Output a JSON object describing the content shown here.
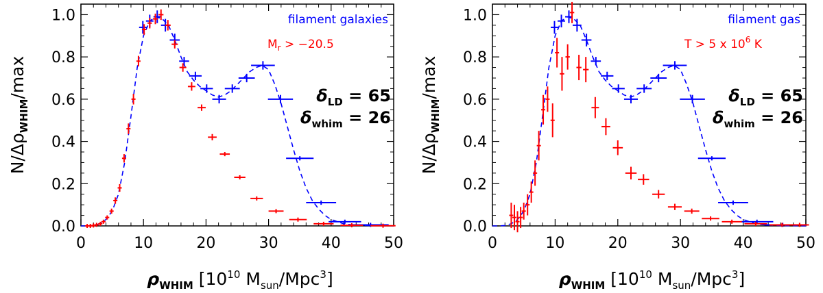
{
  "chart_data": [
    {
      "type": "line",
      "panel": "left",
      "xlim": [
        0,
        50
      ],
      "ylim": [
        0,
        1.05
      ],
      "xticks": [
        0,
        10,
        20,
        30,
        40,
        50
      ],
      "yticks": [
        0.0,
        0.2,
        0.4,
        0.6,
        0.8,
        1.0
      ],
      "xtick_labels": [
        "0",
        "10",
        "20",
        "30",
        "40",
        "50"
      ],
      "ytick_labels": [
        "0.0",
        "0.2",
        "0.4",
        "0.6",
        "0.8",
        "1.0"
      ],
      "xlabel": {
        "main": "ρ",
        "sub": "WHIM",
        "rest": " [10",
        "sup": "10",
        "rest2": " M",
        "sub2": "sun",
        "rest3": "/Mpc",
        "sup2": "3",
        "close": "]"
      },
      "ylabel": {
        "main": "N/Δρ",
        "sub": "WHIM",
        "rest": "/max"
      },
      "legend": [
        {
          "text": "filament galaxies",
          "color": "#0000ff",
          "position": "top-right"
        },
        {
          "text_main": "M",
          "text_sub": "r",
          "text_rest": " > −20.5",
          "color": "#ff0000",
          "position": "top-right"
        }
      ],
      "annotation": {
        "ld_label": "δ",
        "ld_sub": "LD",
        "ld_value": "=  65",
        "whim_label": "δ",
        "whim_sub": "whim",
        "whim_value": "=  26"
      },
      "series": [
        {
          "name": "filament galaxies (model)",
          "color": "#0000ff",
          "style": "dashed",
          "x": [
            0,
            1,
            2,
            3,
            4,
            5,
            6,
            7,
            8,
            9,
            10,
            11,
            12,
            13,
            14,
            15,
            16,
            17,
            18,
            19,
            20,
            21,
            22,
            23,
            24,
            25,
            26,
            27,
            28,
            29,
            30,
            31,
            32,
            33,
            34,
            35,
            36,
            37,
            38,
            39,
            40,
            41,
            42,
            43,
            44,
            45,
            46,
            47,
            48,
            49,
            50
          ],
          "y": [
            0,
            0,
            0.002,
            0.01,
            0.03,
            0.07,
            0.15,
            0.3,
            0.52,
            0.75,
            0.9,
            0.97,
            0.99,
            0.98,
            0.95,
            0.88,
            0.8,
            0.73,
            0.69,
            0.66,
            0.64,
            0.62,
            0.61,
            0.62,
            0.64,
            0.67,
            0.7,
            0.73,
            0.75,
            0.76,
            0.74,
            0.67,
            0.58,
            0.47,
            0.36,
            0.26,
            0.18,
            0.12,
            0.08,
            0.05,
            0.03,
            0.02,
            0.01,
            0.006,
            0.004,
            0.003,
            0.002,
            0.001,
            0.001,
            0.0005,
            0
          ]
        },
        {
          "name": "filament galaxies (binned)",
          "color": "#0000ff",
          "style": "crosses",
          "points": [
            {
              "x": 9.9,
              "y": 0.94,
              "dx": 0.6,
              "dy": 0.03
            },
            {
              "x": 11.0,
              "y": 0.97,
              "dx": 0.6,
              "dy": 0.03
            },
            {
              "x": 12.2,
              "y": 0.99,
              "dx": 0.6,
              "dy": 0.03
            },
            {
              "x": 13.5,
              "y": 0.95,
              "dx": 0.7,
              "dy": 0.03
            },
            {
              "x": 15.0,
              "y": 0.88,
              "dx": 0.8,
              "dy": 0.03
            },
            {
              "x": 16.5,
              "y": 0.78,
              "dx": 0.8,
              "dy": 0.02
            },
            {
              "x": 18.3,
              "y": 0.71,
              "dx": 1.0,
              "dy": 0.02
            },
            {
              "x": 20.1,
              "y": 0.65,
              "dx": 1.0,
              "dy": 0.02
            },
            {
              "x": 22.1,
              "y": 0.6,
              "dx": 1.1,
              "dy": 0.02
            },
            {
              "x": 24.2,
              "y": 0.65,
              "dx": 1.2,
              "dy": 0.02
            },
            {
              "x": 26.5,
              "y": 0.7,
              "dx": 1.3,
              "dy": 0.02
            },
            {
              "x": 29.1,
              "y": 0.76,
              "dx": 1.9,
              "dy": 0.02
            },
            {
              "x": 31.9,
              "y": 0.6,
              "dx": 2.0,
              "dy": 0.02
            },
            {
              "x": 35.0,
              "y": 0.32,
              "dx": 2.2,
              "dy": 0.01
            },
            {
              "x": 38.4,
              "y": 0.11,
              "dx": 2.4,
              "dy": 0.01
            },
            {
              "x": 42.2,
              "y": 0.02,
              "dx": 2.6,
              "dy": 0.005
            },
            {
              "x": 46.3,
              "y": 0.005,
              "dx": 2.9,
              "dy": 0.003
            }
          ]
        },
        {
          "name": "M_r > -20.5",
          "color": "#ff0000",
          "style": "crosses",
          "points": [
            {
              "x": 1.0,
              "y": 0.0,
              "dx": 0.2,
              "dy": 0.003
            },
            {
              "x": 1.5,
              "y": 0.0,
              "dx": 0.2,
              "dy": 0.003
            },
            {
              "x": 2.0,
              "y": 0.002,
              "dx": 0.2,
              "dy": 0.004
            },
            {
              "x": 2.5,
              "y": 0.005,
              "dx": 0.2,
              "dy": 0.005
            },
            {
              "x": 3.1,
              "y": 0.01,
              "dx": 0.2,
              "dy": 0.006
            },
            {
              "x": 3.6,
              "y": 0.02,
              "dx": 0.2,
              "dy": 0.008
            },
            {
              "x": 4.2,
              "y": 0.04,
              "dx": 0.2,
              "dy": 0.01
            },
            {
              "x": 4.9,
              "y": 0.07,
              "dx": 0.2,
              "dy": 0.012
            },
            {
              "x": 5.5,
              "y": 0.12,
              "dx": 0.25,
              "dy": 0.015
            },
            {
              "x": 6.2,
              "y": 0.18,
              "dx": 0.25,
              "dy": 0.018
            },
            {
              "x": 6.9,
              "y": 0.32,
              "dx": 0.25,
              "dy": 0.02
            },
            {
              "x": 7.6,
              "y": 0.46,
              "dx": 0.3,
              "dy": 0.025
            },
            {
              "x": 8.4,
              "y": 0.6,
              "dx": 0.3,
              "dy": 0.025
            },
            {
              "x": 9.2,
              "y": 0.78,
              "dx": 0.3,
              "dy": 0.025
            },
            {
              "x": 10.1,
              "y": 0.93,
              "dx": 0.35,
              "dy": 0.025
            },
            {
              "x": 11.0,
              "y": 0.96,
              "dx": 0.35,
              "dy": 0.025
            },
            {
              "x": 11.9,
              "y": 0.98,
              "dx": 0.4,
              "dy": 0.025
            },
            {
              "x": 12.8,
              "y": 1.0,
              "dx": 0.4,
              "dy": 0.025
            },
            {
              "x": 13.9,
              "y": 0.95,
              "dx": 0.45,
              "dy": 0.025
            },
            {
              "x": 15.0,
              "y": 0.86,
              "dx": 0.5,
              "dy": 0.02
            },
            {
              "x": 16.3,
              "y": 0.75,
              "dx": 0.55,
              "dy": 0.02
            },
            {
              "x": 17.7,
              "y": 0.66,
              "dx": 0.6,
              "dy": 0.02
            },
            {
              "x": 19.3,
              "y": 0.56,
              "dx": 0.65,
              "dy": 0.015
            },
            {
              "x": 21.0,
              "y": 0.42,
              "dx": 0.7,
              "dy": 0.015
            },
            {
              "x": 23.0,
              "y": 0.34,
              "dx": 0.8,
              "dy": 0.01
            },
            {
              "x": 25.4,
              "y": 0.23,
              "dx": 0.9,
              "dy": 0.01
            },
            {
              "x": 28.1,
              "y": 0.13,
              "dx": 1.0,
              "dy": 0.008
            },
            {
              "x": 31.2,
              "y": 0.07,
              "dx": 1.2,
              "dy": 0.006
            },
            {
              "x": 34.7,
              "y": 0.03,
              "dx": 1.4,
              "dy": 0.004
            },
            {
              "x": 38.8,
              "y": 0.01,
              "dx": 1.6,
              "dy": 0.003
            },
            {
              "x": 43.3,
              "y": 0.003,
              "dx": 1.8,
              "dy": 0.002
            },
            {
              "x": 48.3,
              "y": 0.001,
              "dx": 2.0,
              "dy": 0.001
            }
          ]
        }
      ]
    },
    {
      "type": "line",
      "panel": "right",
      "xlim": [
        0,
        50
      ],
      "ylim": [
        0,
        1.05
      ],
      "xticks": [
        0,
        10,
        20,
        30,
        40,
        50
      ],
      "yticks": [
        0.0,
        0.2,
        0.4,
        0.6,
        0.8,
        1.0
      ],
      "xtick_labels": [
        "0",
        "10",
        "20",
        "30",
        "40",
        "50"
      ],
      "ytick_labels": [
        "0.0",
        "0.2",
        "0.4",
        "0.6",
        "0.8",
        "1.0"
      ],
      "xlabel": {
        "main": "ρ",
        "sub": "WHIM",
        "rest": " [10",
        "sup": "10",
        "rest2": " M",
        "sub2": "sun",
        "rest3": "/Mpc",
        "sup2": "3",
        "close": "]"
      },
      "ylabel": {
        "main": "N/Δρ",
        "sub": "WHIM",
        "rest": "/max"
      },
      "legend": [
        {
          "text": "filament gas",
          "color": "#0000ff",
          "position": "top-right"
        },
        {
          "text_main": "T > 5 x 10",
          "text_sup": "6",
          "text_rest": " K",
          "color": "#ff0000",
          "position": "top-right"
        }
      ],
      "annotation": {
        "ld_label": "δ",
        "ld_sub": "LD",
        "ld_value": "=  65",
        "whim_label": "δ",
        "whim_sub": "whim",
        "whim_value": "=  26"
      },
      "series": [
        {
          "name": "filament gas (model)",
          "color": "#0000ff",
          "style": "dashed",
          "x": [
            0,
            1,
            2,
            3,
            4,
            5,
            6,
            7,
            8,
            9,
            10,
            11,
            12,
            13,
            14,
            15,
            16,
            17,
            18,
            19,
            20,
            21,
            22,
            23,
            24,
            25,
            26,
            27,
            28,
            29,
            30,
            31,
            32,
            33,
            34,
            35,
            36,
            37,
            38,
            39,
            40,
            41,
            42,
            43,
            44,
            45,
            46,
            47,
            48,
            49,
            50
          ],
          "y": [
            0,
            0,
            0.002,
            0.01,
            0.03,
            0.07,
            0.15,
            0.3,
            0.52,
            0.75,
            0.9,
            0.97,
            0.99,
            0.98,
            0.95,
            0.88,
            0.8,
            0.73,
            0.69,
            0.66,
            0.64,
            0.62,
            0.61,
            0.62,
            0.64,
            0.67,
            0.7,
            0.73,
            0.75,
            0.76,
            0.74,
            0.67,
            0.58,
            0.47,
            0.36,
            0.26,
            0.18,
            0.12,
            0.08,
            0.05,
            0.03,
            0.02,
            0.01,
            0.006,
            0.004,
            0.003,
            0.002,
            0.001,
            0.001,
            0.0005,
            0
          ]
        },
        {
          "name": "filament gas (binned)",
          "color": "#0000ff",
          "style": "crosses",
          "points": [
            {
              "x": 9.9,
              "y": 0.94,
              "dx": 0.6,
              "dy": 0.03
            },
            {
              "x": 11.0,
              "y": 0.97,
              "dx": 0.6,
              "dy": 0.03
            },
            {
              "x": 12.2,
              "y": 0.99,
              "dx": 0.6,
              "dy": 0.03
            },
            {
              "x": 13.5,
              "y": 0.95,
              "dx": 0.7,
              "dy": 0.03
            },
            {
              "x": 15.0,
              "y": 0.88,
              "dx": 0.8,
              "dy": 0.03
            },
            {
              "x": 16.5,
              "y": 0.78,
              "dx": 0.8,
              "dy": 0.02
            },
            {
              "x": 18.3,
              "y": 0.71,
              "dx": 1.0,
              "dy": 0.02
            },
            {
              "x": 20.1,
              "y": 0.65,
              "dx": 1.0,
              "dy": 0.02
            },
            {
              "x": 22.1,
              "y": 0.6,
              "dx": 1.1,
              "dy": 0.02
            },
            {
              "x": 24.2,
              "y": 0.65,
              "dx": 1.2,
              "dy": 0.02
            },
            {
              "x": 26.5,
              "y": 0.7,
              "dx": 1.3,
              "dy": 0.02
            },
            {
              "x": 29.1,
              "y": 0.76,
              "dx": 1.9,
              "dy": 0.02
            },
            {
              "x": 31.9,
              "y": 0.6,
              "dx": 2.0,
              "dy": 0.02
            },
            {
              "x": 35.0,
              "y": 0.32,
              "dx": 2.2,
              "dy": 0.01
            },
            {
              "x": 38.4,
              "y": 0.11,
              "dx": 2.4,
              "dy": 0.01
            },
            {
              "x": 42.2,
              "y": 0.02,
              "dx": 2.6,
              "dy": 0.005
            },
            {
              "x": 46.3,
              "y": 0.005,
              "dx": 2.9,
              "dy": 0.003
            }
          ]
        },
        {
          "name": "T > 5 x 10^6 K",
          "color": "#ff0000",
          "style": "crosses",
          "points": [
            {
              "x": 3.0,
              "y": 0.05,
              "dx": 0.15,
              "dy": 0.06
            },
            {
              "x": 3.5,
              "y": 0.04,
              "dx": 0.15,
              "dy": 0.06
            },
            {
              "x": 4.0,
              "y": 0.02,
              "dx": 0.15,
              "dy": 0.05
            },
            {
              "x": 4.5,
              "y": 0.04,
              "dx": 0.15,
              "dy": 0.05
            },
            {
              "x": 5.0,
              "y": 0.07,
              "dx": 0.2,
              "dy": 0.04
            },
            {
              "x": 5.6,
              "y": 0.1,
              "dx": 0.2,
              "dy": 0.05
            },
            {
              "x": 6.2,
              "y": 0.16,
              "dx": 0.2,
              "dy": 0.05
            },
            {
              "x": 6.8,
              "y": 0.25,
              "dx": 0.25,
              "dy": 0.06
            },
            {
              "x": 7.4,
              "y": 0.38,
              "dx": 0.25,
              "dy": 0.07
            },
            {
              "x": 8.1,
              "y": 0.55,
              "dx": 0.25,
              "dy": 0.07
            },
            {
              "x": 8.8,
              "y": 0.6,
              "dx": 0.3,
              "dy": 0.06
            },
            {
              "x": 9.6,
              "y": 0.5,
              "dx": 0.3,
              "dy": 0.08
            },
            {
              "x": 10.3,
              "y": 0.82,
              "dx": 0.3,
              "dy": 0.07
            },
            {
              "x": 11.1,
              "y": 0.72,
              "dx": 0.35,
              "dy": 0.08
            },
            {
              "x": 12.0,
              "y": 0.8,
              "dx": 0.35,
              "dy": 0.06
            },
            {
              "x": 12.7,
              "y": 1.01,
              "dx": 0.35,
              "dy": 0.05
            },
            {
              "x": 13.8,
              "y": 0.75,
              "dx": 0.4,
              "dy": 0.06
            },
            {
              "x": 14.9,
              "y": 0.74,
              "dx": 0.45,
              "dy": 0.06
            },
            {
              "x": 16.4,
              "y": 0.56,
              "dx": 0.6,
              "dy": 0.05
            },
            {
              "x": 18.1,
              "y": 0.47,
              "dx": 0.7,
              "dy": 0.04
            },
            {
              "x": 20.0,
              "y": 0.37,
              "dx": 0.8,
              "dy": 0.035
            },
            {
              "x": 22.1,
              "y": 0.25,
              "dx": 0.9,
              "dy": 0.03
            },
            {
              "x": 24.1,
              "y": 0.22,
              "dx": 0.9,
              "dy": 0.025
            },
            {
              "x": 26.5,
              "y": 0.15,
              "dx": 1.0,
              "dy": 0.02
            },
            {
              "x": 29.1,
              "y": 0.09,
              "dx": 1.1,
              "dy": 0.015
            },
            {
              "x": 31.8,
              "y": 0.07,
              "dx": 1.2,
              "dy": 0.012
            },
            {
              "x": 34.8,
              "y": 0.035,
              "dx": 1.4,
              "dy": 0.01
            },
            {
              "x": 38.2,
              "y": 0.02,
              "dx": 1.6,
              "dy": 0.008
            },
            {
              "x": 42.0,
              "y": 0.01,
              "dx": 1.8,
              "dy": 0.006
            },
            {
              "x": 46.2,
              "y": 0.005,
              "dx": 2.0,
              "dy": 0.005
            },
            {
              "x": 49.0,
              "y": 0.005,
              "dx": 1.5,
              "dy": 0.004
            }
          ]
        }
      ]
    }
  ]
}
